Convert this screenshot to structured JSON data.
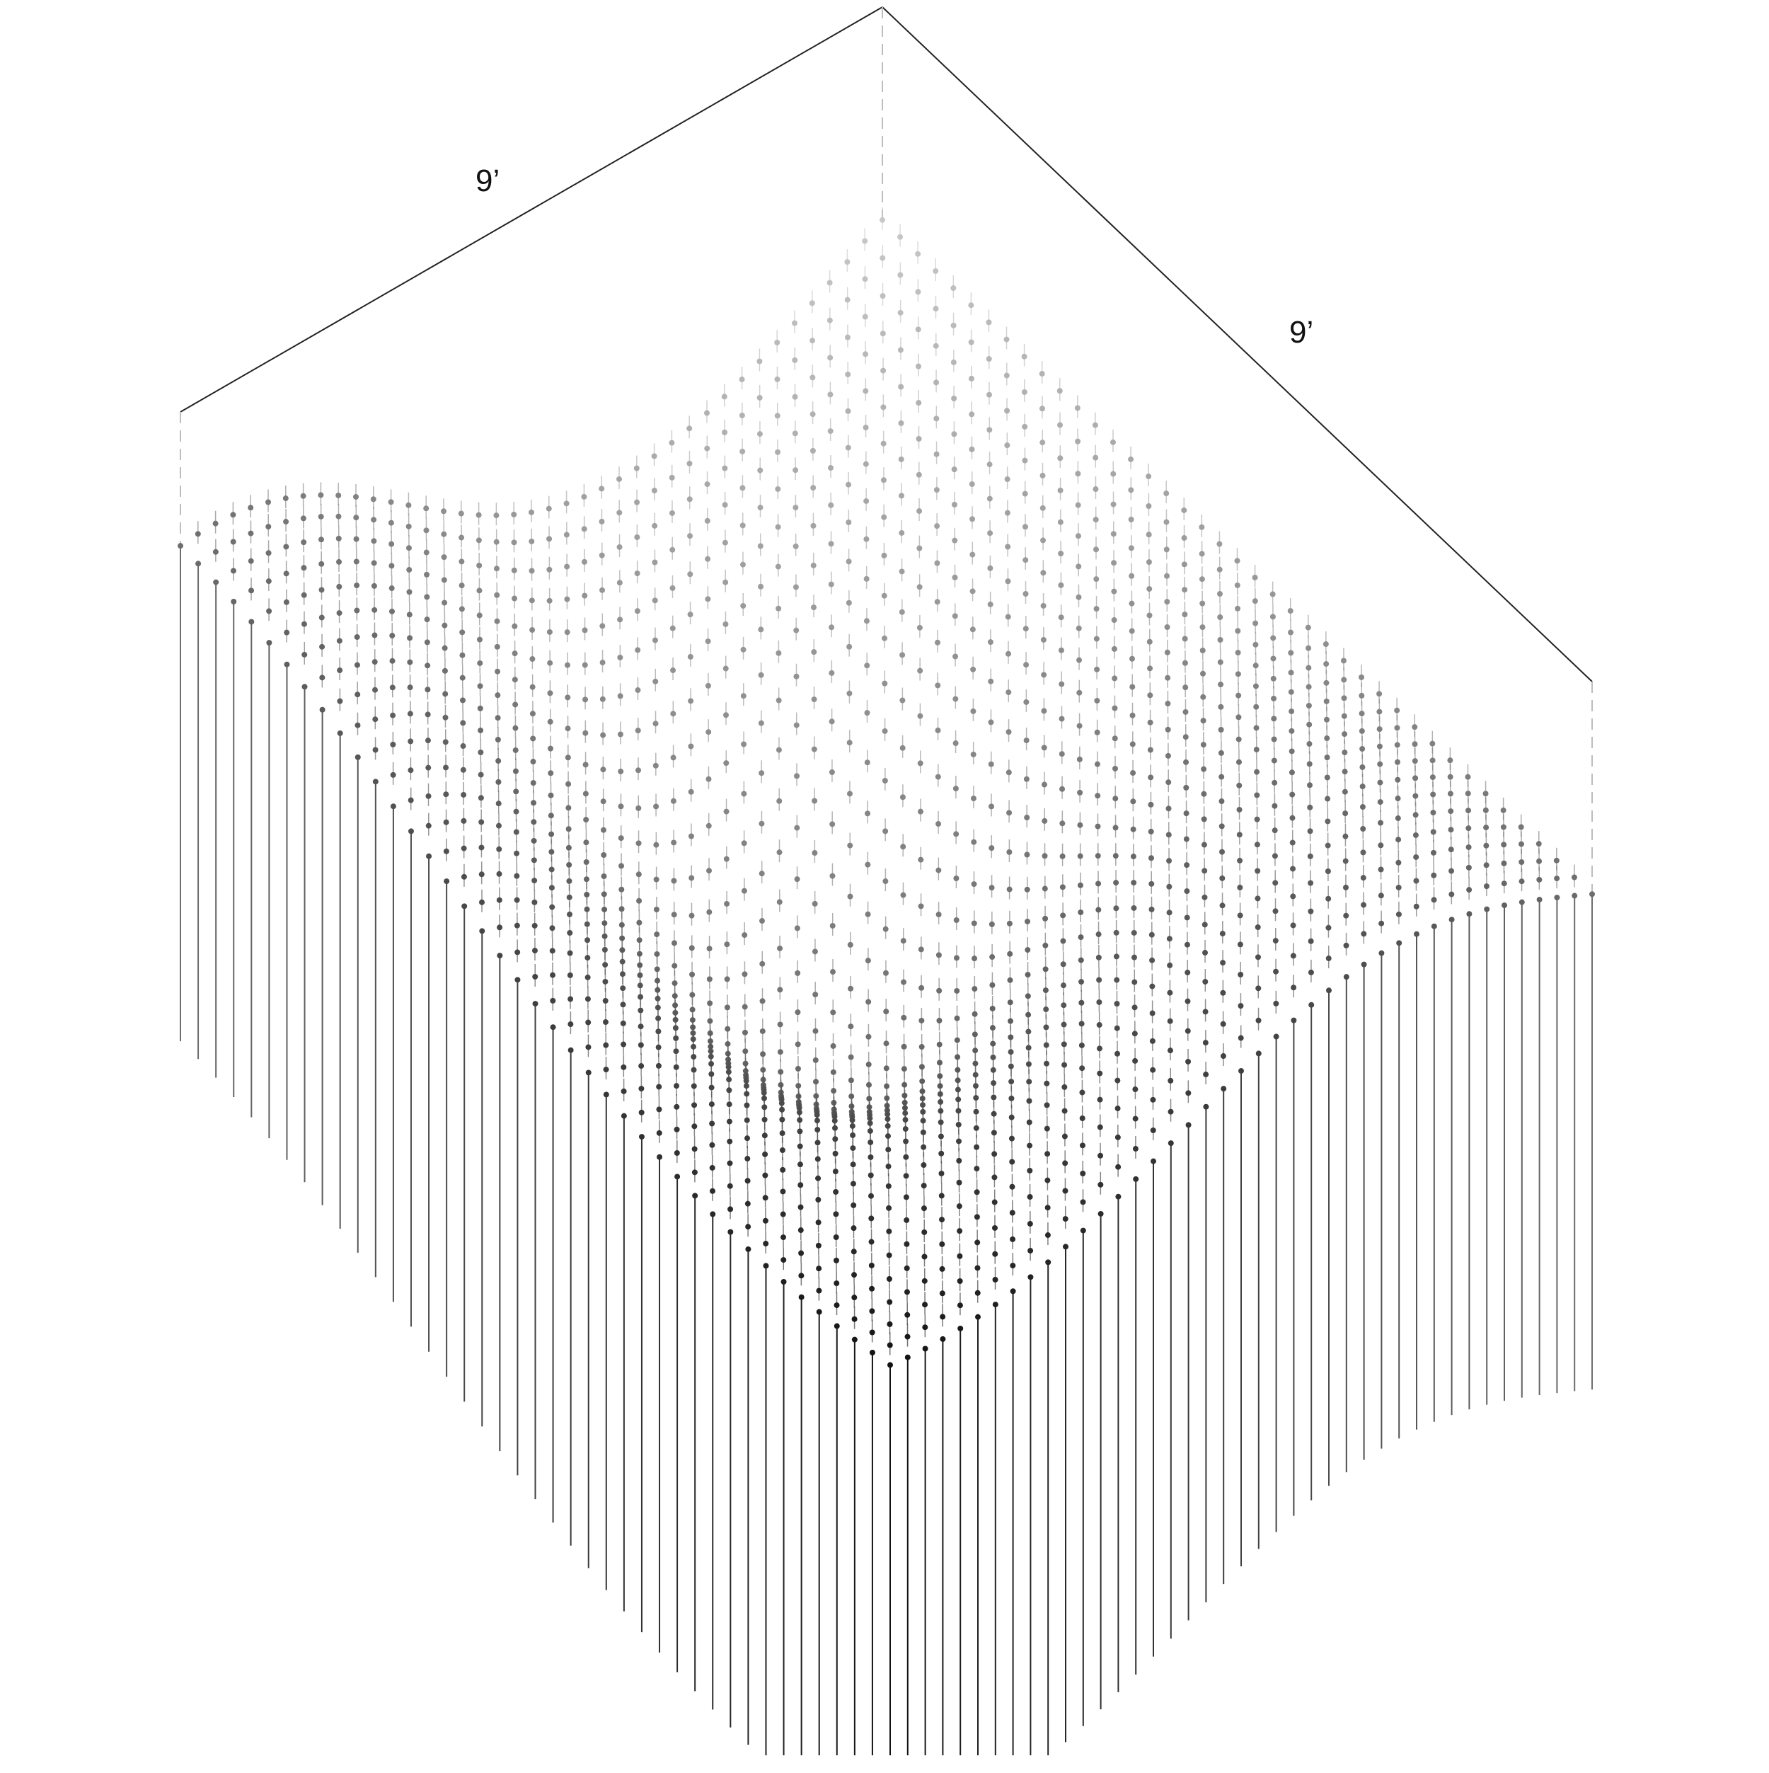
{
  "dimensions": {
    "left_label": "9’",
    "right_label": "9’"
  },
  "colors": {
    "background": "#ffffff",
    "outline": "#222222",
    "guide": "#bdbdbd",
    "back_rods": "#c8c8c8",
    "front_rods": "#111111"
  }
}
